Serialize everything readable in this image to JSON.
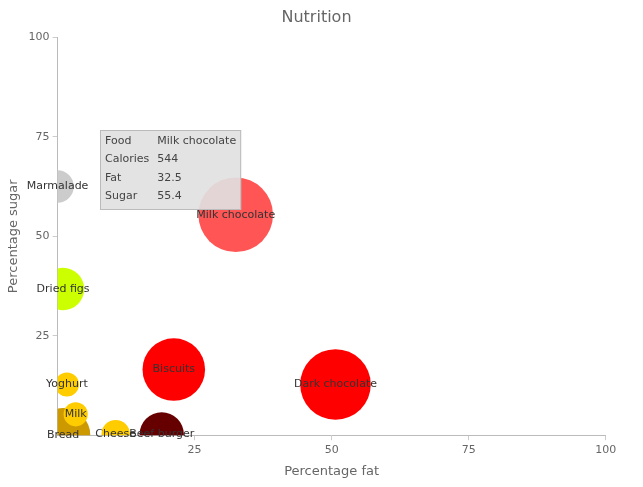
{
  "chart_data": {
    "type": "bubble",
    "title": "Nutrition",
    "x_label": "Percentage fat",
    "y_label": "Percentage sugar",
    "xlim": [
      0,
      100
    ],
    "xticks": [
      25,
      50,
      75,
      100
    ],
    "ylim": [
      0,
      100
    ],
    "yticks": [
      25,
      50,
      75,
      100
    ],
    "grid": false,
    "data_labels": true,
    "points": [
      {
        "name": "Marmalade",
        "x": 0,
        "y": 62.5,
        "calories": 102,
        "color": "#cccccc"
      },
      {
        "name": "Dried figs",
        "x": 1,
        "y": 36.75,
        "calories": 175,
        "color": "#ccff00"
      },
      {
        "name": "Yoghurt",
        "x": 1.7,
        "y": 12.75,
        "calories": 57,
        "color": "#ffcc00"
      },
      {
        "name": "Bread",
        "x": 1,
        "y": 0,
        "calories": 290,
        "color": "#cc9900"
      },
      {
        "name": "Milk",
        "x": 3.3,
        "y": 5.25,
        "calories": 57,
        "color": "#ffcc00"
      },
      {
        "name": "Cheese",
        "x": 10.6,
        "y": 0.3,
        "calories": 78,
        "color": "#ffcc00"
      },
      {
        "name": "Beef burger",
        "x": 19,
        "y": 0.2,
        "calories": 192,
        "color": "#660000"
      },
      {
        "name": "Biscuits",
        "x": 21.2,
        "y": 16.5,
        "calories": 382,
        "color": "#ff0000"
      },
      {
        "name": "Dark chocolate",
        "x": 50.7,
        "y": 12.75,
        "calories": 487,
        "color": "#ff0000"
      },
      {
        "name": "Milk chocolate",
        "x": 32.5,
        "y": 55.4,
        "calories": 544,
        "color": "#ff5555"
      }
    ],
    "tooltip": [
      [
        "Food",
        "Milk chocolate"
      ],
      [
        "Calories",
        544
      ],
      [
        "Fat",
        32.5
      ],
      [
        "Sugar",
        55.4
      ]
    ]
  }
}
